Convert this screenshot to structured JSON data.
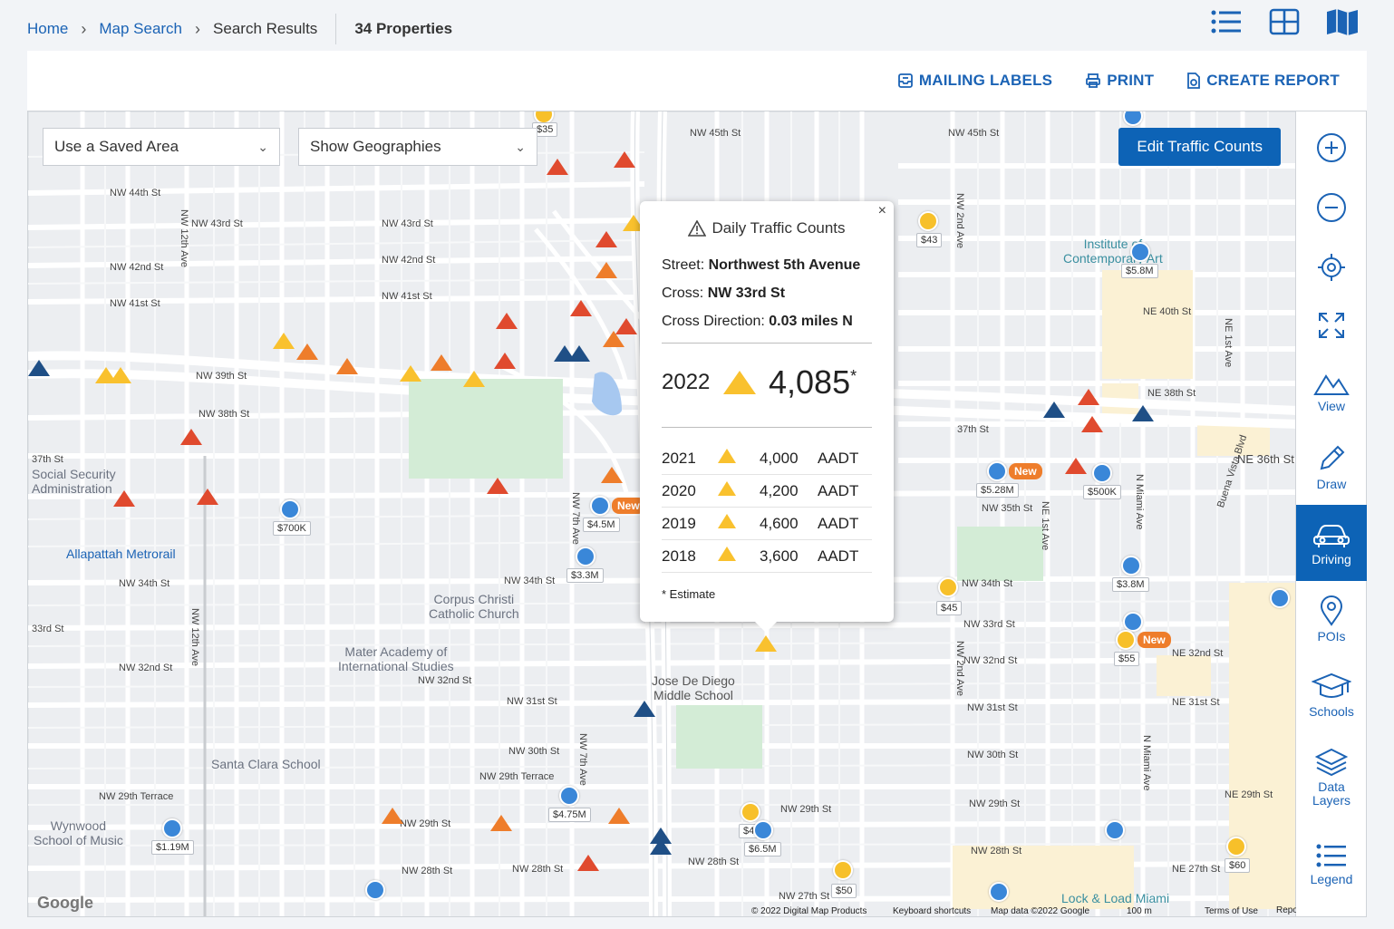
{
  "breadcrumb": {
    "home": "Home",
    "map_search": "Map Search",
    "search_results": "Search Results",
    "count": "34 Properties"
  },
  "view_icons": [
    "list-view-icon",
    "grid-view-icon",
    "map-view-icon"
  ],
  "toolbar": {
    "mailing_labels": "MAILING LABELS",
    "print": "PRINT",
    "create_report": "CREATE REPORT"
  },
  "map": {
    "saved_area": "Use a Saved Area",
    "geographies": "Show Geographies",
    "edit_traffic": "Edit Traffic Counts",
    "footer": {
      "copyright": "© 2022 Digital Map Products",
      "shortcuts": "Keyboard shortcuts",
      "mapdata": "Map data ©2022 Google",
      "scale": "100 m",
      "terms": "Terms of Use",
      "report": "Report a map error",
      "google": "Google"
    },
    "pois": {
      "social_security": "Social Security\nAdministration",
      "allapattah": "Allapattah Metrorail",
      "corpus": "Corpus Christi\nCatholic Church",
      "mater": "Mater Academy of\nInternational Studies",
      "jose": "Jose De Diego\nMiddle School",
      "santa": "Santa Clara School",
      "wynwood": "Wynwood\nSchool of Music",
      "institute": "Institute of\nContemporary Art",
      "lock": "Lock & Load Miami"
    },
    "streets": {
      "nw44": "NW 44th St",
      "nw43": "NW 43rd St",
      "nw42": "NW 42nd St",
      "nw41": "NW 41st St",
      "nw39": "NW 39th St",
      "nw38": "NW 38th St",
      "nw37": "37th St",
      "nw34": "NW 34th St",
      "nw33": "33rd St",
      "nw32": "NW 32nd St",
      "nw31": "NW 31st St",
      "nw30": "NW 30th St",
      "nw29t": "NW 29th Terrace",
      "nw29": "NW 29th St",
      "nw28": "NW 28th St",
      "nw27": "NW 27th St",
      "ne36": "NE 36th St",
      "ne40": "NE 40th St",
      "ne38": "NE 38th St",
      "ne32": "NE 32nd St",
      "ne31": "NE 31st St",
      "ne29": "NE 29th St",
      "ne27": "NE 27th St",
      "nw12": "NW 12th Ave",
      "nw7": "NW 7th Ave",
      "nw2": "NW 2nd Ave",
      "nmiami": "N Miami Ave",
      "ne1": "NE 1st Ave",
      "buena": "Buena Vista Blvd",
      "nw45": "NW 45th St",
      "nw35": "NW 35th St",
      "nw29b": "NW 29th St",
      "nw33b": "NW 33rd St",
      "nw32b": "NW 32nd St"
    },
    "prices": [
      {
        "label": "$35"
      },
      {
        "label": "$43"
      },
      {
        "label": "$5.8M"
      },
      {
        "label": "$700K"
      },
      {
        "label": "$4.5M"
      },
      {
        "label": "$3.3M"
      },
      {
        "label": "$5.28M"
      },
      {
        "label": "$500K"
      },
      {
        "label": "$3.8M"
      },
      {
        "label": "$45"
      },
      {
        "label": "$55"
      },
      {
        "label": "$4.75M"
      },
      {
        "label": "$1.19M"
      },
      {
        "label": "$45"
      },
      {
        "label": "$6.5M"
      },
      {
        "label": "$50"
      },
      {
        "label": "$60"
      }
    ],
    "new_tag": "New",
    "popup": {
      "title": "Daily Traffic Counts",
      "street_label": "Street:",
      "street": "Northwest 5th Avenue",
      "cross_label": "Cross:",
      "cross": "NW 33rd St",
      "dir_label": "Cross Direction:",
      "dir": "0.03 miles N",
      "main_year": "2022",
      "main_value": "4,085",
      "main_mark": "*",
      "rows": [
        {
          "year": "2021",
          "value": "4,000",
          "unit": "AADT"
        },
        {
          "year": "2020",
          "value": "4,200",
          "unit": "AADT"
        },
        {
          "year": "2019",
          "value": "4,600",
          "unit": "AADT"
        },
        {
          "year": "2018",
          "value": "3,600",
          "unit": "AADT"
        }
      ],
      "note": "* Estimate",
      "close": "×"
    }
  },
  "sidebar": [
    {
      "label": "",
      "icon": "zoom-in-icon"
    },
    {
      "label": "",
      "icon": "zoom-out-icon"
    },
    {
      "label": "",
      "icon": "locate-icon"
    },
    {
      "label": "",
      "icon": "fullscreen-icon"
    },
    {
      "label": "View",
      "icon": "mountain-icon"
    },
    {
      "label": "Draw",
      "icon": "pencil-icon"
    },
    {
      "label": "Driving",
      "icon": "car-icon"
    },
    {
      "label": "POIs",
      "icon": "location-pin-icon"
    },
    {
      "label": "Schools",
      "icon": "graduation-cap-icon"
    },
    {
      "label": "Data\nLayers",
      "icon": "layers-icon"
    },
    {
      "label": "Legend",
      "icon": "legend-list-icon"
    }
  ],
  "colors": {
    "accent": "#0d63b6",
    "link": "#1b63b5",
    "high": "#e04a2e",
    "mid": "#ee7d2b",
    "low": "#f9c12e",
    "dark": "#1f4f86",
    "pin": "#3a87d8"
  }
}
